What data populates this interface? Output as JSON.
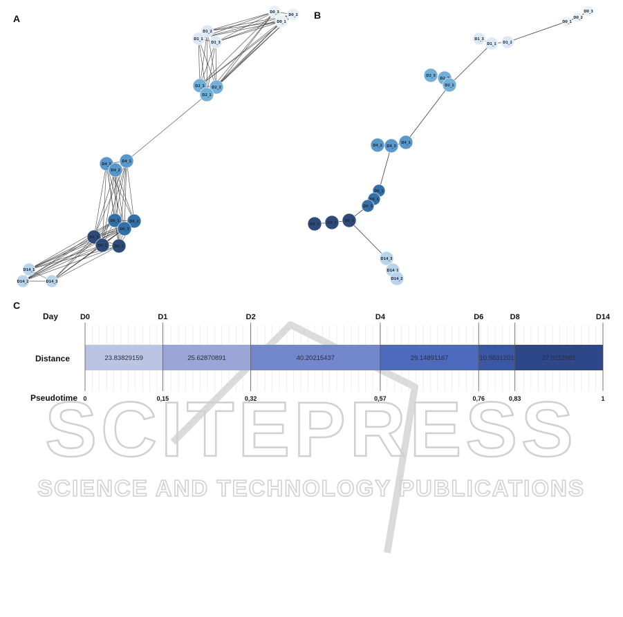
{
  "panels": {
    "a": "A",
    "b": "B",
    "c": "C"
  },
  "colors": {
    "D0": "#eaf0f8",
    "D1": "#dce8f5",
    "D2": "#73b0d8",
    "D4": "#5a98cb",
    "D6": "#3470a8",
    "D8": "#2e4a78",
    "D14": "#b9d4ea"
  },
  "graph_a": {
    "nodes": [
      {
        "label": "D0_3"
      },
      {
        "label": "D0_2"
      },
      {
        "label": "D0_1"
      },
      {
        "label": "D1_2"
      },
      {
        "label": "D1_1"
      },
      {
        "label": "D1_3"
      },
      {
        "label": "D2_3"
      },
      {
        "label": "D2_2"
      },
      {
        "label": "D2_1"
      },
      {
        "label": "D4_3"
      },
      {
        "label": "D4_1"
      },
      {
        "label": "D4_2"
      },
      {
        "label": "D6_1"
      },
      {
        "label": "D6_2"
      },
      {
        "label": "D6_3"
      },
      {
        "label": "D8_2"
      },
      {
        "label": "D8_1"
      },
      {
        "label": "D8_3"
      },
      {
        "label": "D14_1"
      },
      {
        "label": "D14_2"
      },
      {
        "label": "D14_3"
      }
    ]
  },
  "graph_b": {
    "nodes": [
      {
        "label": "D0_3"
      },
      {
        "label": "D0_2"
      },
      {
        "label": "D0_1"
      },
      {
        "label": "D1_3"
      },
      {
        "label": "D1_1"
      },
      {
        "label": "D1_2"
      },
      {
        "label": "D2_3"
      },
      {
        "label": "D2_2"
      },
      {
        "label": "D2_1"
      },
      {
        "label": "D4_2"
      },
      {
        "label": "D4_3"
      },
      {
        "label": "D4_1"
      },
      {
        "label": "D6_2"
      },
      {
        "label": "D6_1"
      },
      {
        "label": "D6_3"
      },
      {
        "label": "D8_2"
      },
      {
        "label": "D8_1"
      },
      {
        "label": "D8_3"
      },
      {
        "label": "D14_3"
      },
      {
        "label": "D14_1"
      },
      {
        "label": "D14_2"
      }
    ]
  },
  "timeline": {
    "row_day": "Day",
    "row_distance": "Distance",
    "row_pseudotime": "Pseudotime",
    "days": [
      "D0",
      "D1",
      "D2",
      "D4",
      "D6",
      "D8",
      "D14"
    ],
    "pseudotime_labels": [
      "0",
      "0,15",
      "0,32",
      "0,57",
      "0,76",
      "0,83",
      "1"
    ],
    "pseudotime": [
      0,
      0.15,
      0.32,
      0.57,
      0.76,
      0.83,
      1
    ],
    "distances": [
      "23.83829159",
      "25.62870891",
      "40.20215437",
      "29.14891167",
      "10.9831201",
      "27.0112881"
    ],
    "segment_colors": [
      "#bcc4e4",
      "#9aa6d8",
      "#7388cc",
      "#4d6abd",
      "#3a57a6",
      "#2e4788"
    ]
  },
  "watermark": {
    "big": "SCITEPRESS",
    "small": "SCIENCE AND TECHNOLOGY PUBLICATIONS"
  }
}
